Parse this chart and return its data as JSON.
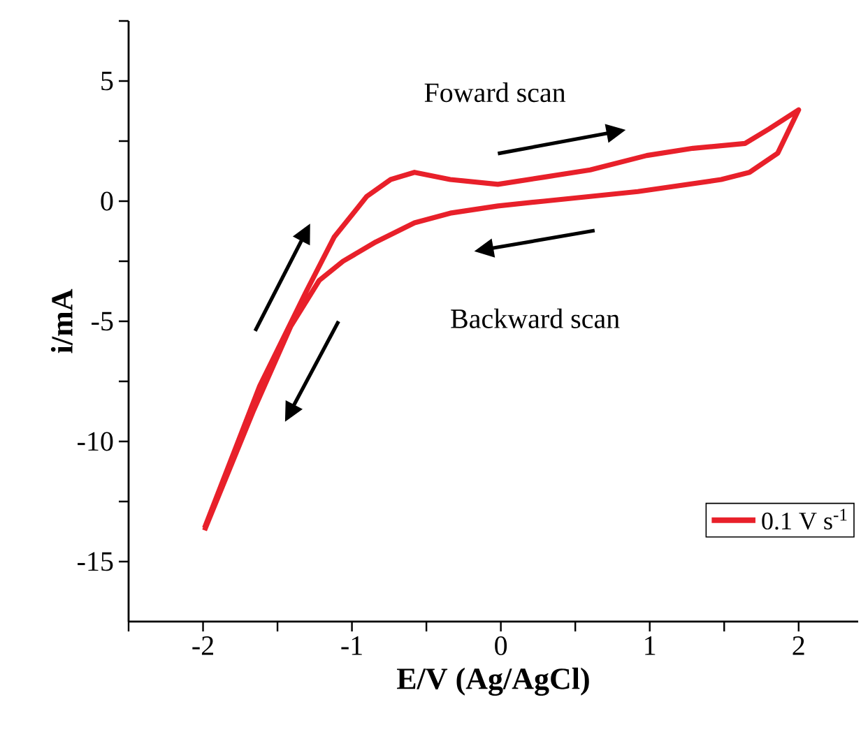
{
  "chart_data": {
    "type": "line",
    "xlabel": "E/V (Ag/AgCl)",
    "ylabel": "i/mA",
    "annotations": [
      "Foward scan",
      "Backward scan"
    ],
    "xlim": [
      -2.5,
      2.4
    ],
    "ylim": [
      -17.5,
      7.5
    ],
    "xticks": [
      {
        "value": -2.5,
        "label": null
      },
      -2,
      {
        "value": -1.5,
        "label": null
      },
      -1,
      {
        "value": -0.5,
        "label": null
      },
      0,
      {
        "value": 0.5,
        "label": null
      },
      1,
      {
        "value": 1.5,
        "label": null
      },
      2
    ],
    "yticks": [
      {
        "value": -12.5,
        "label": null
      },
      -15,
      -10,
      {
        "value": -7.5,
        "label": null
      },
      -5,
      {
        "value": -2.5,
        "label": null
      },
      0,
      {
        "value": 2.5,
        "label": null
      },
      5,
      {
        "value": 7.5,
        "label": null
      }
    ],
    "grid": false,
    "legend": "bottom right",
    "marker": "none",
    "line_style": "solid",
    "series": [
      {
        "name": "0.1 V s$^{-1}$",
        "color": "#e8202a",
        "x": [
          -1.99,
          -1.62,
          -1.31,
          -1.12,
          -0.9,
          -0.74,
          -0.58,
          -0.34,
          -0.02,
          0.29,
          0.6,
          0.98,
          1.29,
          1.64,
          1.8,
          2.0,
          1.86,
          1.67,
          1.48,
          0.92,
          0.29,
          -0.02,
          -0.34,
          -0.58,
          -0.84,
          -1.06,
          -1.22,
          -1.41,
          -1.66,
          -1.99
        ],
        "values": [
          -13.6,
          -7.7,
          -3.8,
          -1.5,
          0.2,
          0.9,
          1.2,
          0.9,
          0.7,
          1.0,
          1.3,
          1.9,
          2.2,
          2.4,
          3.0,
          3.8,
          2.0,
          1.2,
          0.9,
          0.4,
          0.0,
          -0.2,
          -0.5,
          -0.9,
          -1.7,
          -2.5,
          -3.3,
          -5.2,
          -8.7,
          -13.7
        ]
      }
    ]
  }
}
